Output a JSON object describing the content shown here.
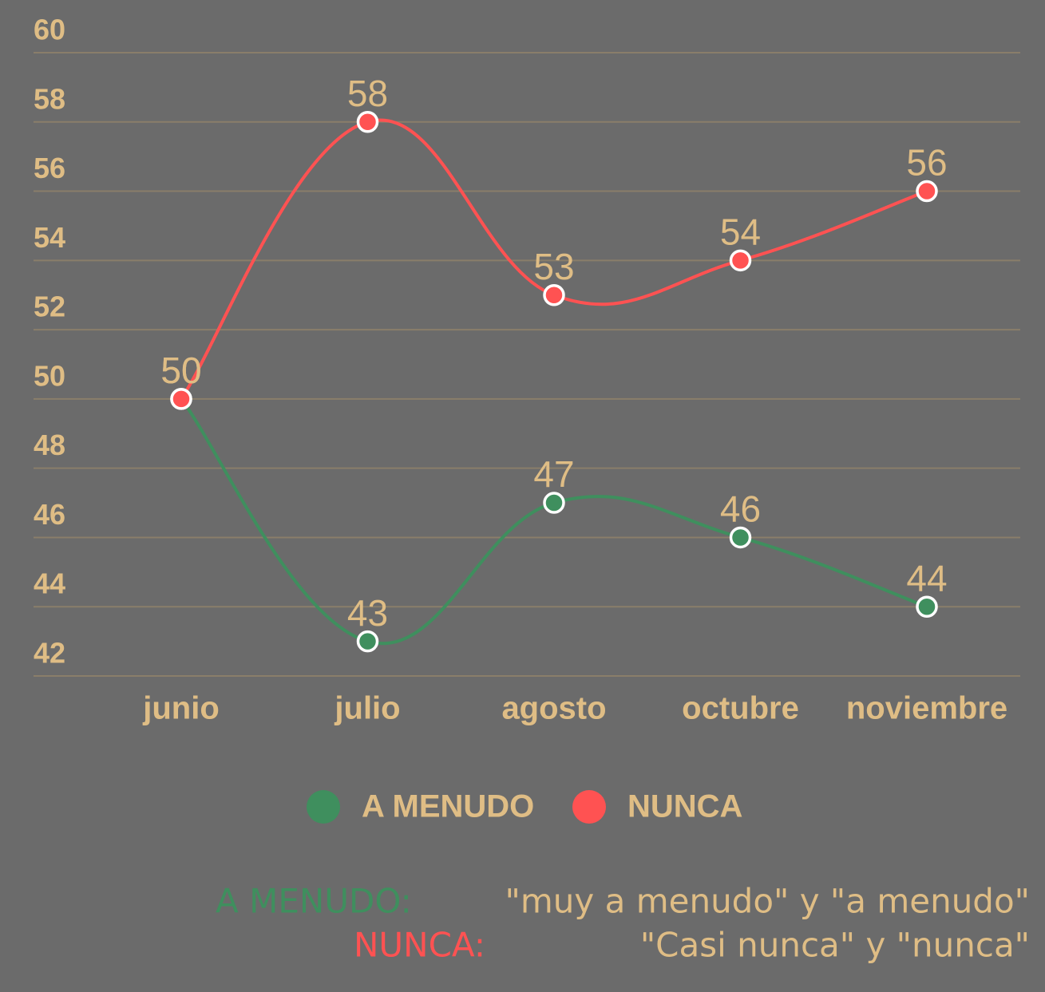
{
  "chart_data": {
    "type": "line",
    "categories": [
      "junio",
      "julio",
      "agosto",
      "octubre",
      "noviembre"
    ],
    "series": [
      {
        "name": "A MENUDO",
        "color": "#3f8f5e",
        "values": [
          50,
          43,
          47,
          46,
          44
        ]
      },
      {
        "name": "NUNCA",
        "color": "#ff5252",
        "values": [
          50,
          58,
          53,
          54,
          56
        ]
      }
    ],
    "ylim": [
      42,
      60
    ],
    "yticks": [
      42,
      44,
      46,
      48,
      50,
      52,
      54,
      56,
      58,
      60
    ],
    "grid": true,
    "legend": "bottom",
    "notes": [
      {
        "label": "A MENUDO:",
        "text": "\"muy a menudo\" y \"a menudo\""
      },
      {
        "label": "NUNCA:",
        "text": "\"Casi nunca\" y \"nunca\""
      }
    ]
  }
}
